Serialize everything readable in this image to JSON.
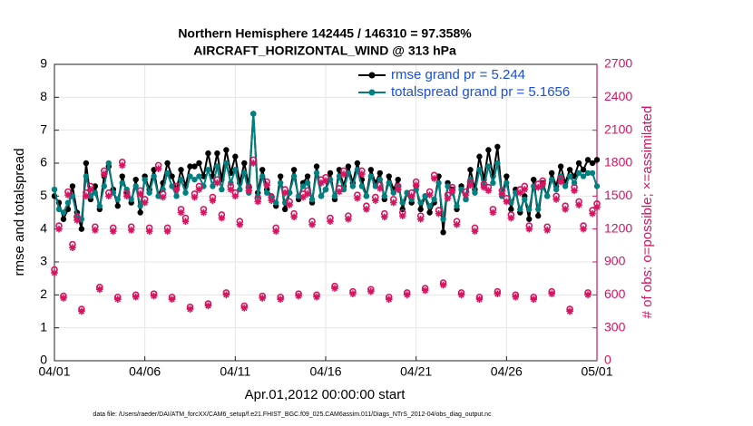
{
  "chart_data": {
    "type": "line",
    "title": "Northern Hemisphere 142445 / 146310 = 97.358%",
    "subtitle": "AIRCRAFT_HORIZONTAL_WIND @ 313 hPa",
    "x_label": "Apr.01,2012 00:00:00 start",
    "y_label": "rmse and totalspread",
    "y2_label": "# of obs: o=possible; ×=assimilated",
    "footnote": "data file: /Users/raeder/DAI/ATM_forcXX/CAM6_setup/f.e21.FHIST_BGC.f09_025.CAM6assim.011/Diags_NTrS_2012-04/obs_diag_output.nc",
    "xlim": [
      0,
      30
    ],
    "xticks": [
      {
        "value": 0,
        "label": "04/01"
      },
      {
        "value": 5,
        "label": "04/06"
      },
      {
        "value": 10,
        "label": "04/11"
      },
      {
        "value": 15,
        "label": "04/16"
      },
      {
        "value": 20,
        "label": "04/21"
      },
      {
        "value": 25,
        "label": "04/26"
      },
      {
        "value": 30,
        "label": "05/01"
      }
    ],
    "ylim": [
      0,
      9
    ],
    "yticks": [
      0,
      1,
      2,
      3,
      4,
      5,
      6,
      7,
      8,
      9
    ],
    "y2lim": [
      0,
      2700
    ],
    "y2ticks": [
      0,
      300,
      600,
      900,
      1200,
      1500,
      1800,
      2100,
      2400,
      2700
    ],
    "grid": true,
    "legend": "upper right",
    "x": [
      0,
      0.25,
      0.5,
      0.75,
      1,
      1.25,
      1.5,
      1.75,
      2,
      2.25,
      2.5,
      2.75,
      3,
      3.25,
      3.5,
      3.75,
      4,
      4.25,
      4.5,
      4.75,
      5,
      5.25,
      5.5,
      5.75,
      6,
      6.25,
      6.5,
      6.75,
      7,
      7.25,
      7.5,
      7.75,
      8,
      8.25,
      8.5,
      8.75,
      9,
      9.25,
      9.5,
      9.75,
      10,
      10.25,
      10.5,
      10.75,
      11,
      11.25,
      11.5,
      11.75,
      12,
      12.25,
      12.5,
      12.75,
      13,
      13.25,
      13.5,
      13.75,
      14,
      14.25,
      14.5,
      14.75,
      15,
      15.25,
      15.5,
      15.75,
      16,
      16.25,
      16.5,
      16.75,
      17,
      17.25,
      17.5,
      17.75,
      18,
      18.25,
      18.5,
      18.75,
      19,
      19.25,
      19.5,
      19.75,
      20,
      20.25,
      20.5,
      20.75,
      21,
      21.25,
      21.5,
      21.75,
      22,
      22.25,
      22.5,
      22.75,
      23,
      23.25,
      23.5,
      23.75,
      24,
      24.25,
      24.5,
      24.75,
      25,
      25.25,
      25.5,
      25.75,
      26,
      26.25,
      26.5,
      26.75,
      27,
      27.25,
      27.5,
      27.75,
      28,
      28.25,
      28.5,
      28.75,
      29,
      29.25,
      29.5,
      29.75,
      30
    ],
    "series": [
      {
        "name": "rmse grand pr = 5.244",
        "color": "#000000",
        "marker": "dot",
        "values": [
          5.0,
          4.8,
          4.3,
          4.6,
          5.3,
          4.5,
          4.0,
          6.0,
          4.9,
          5.3,
          4.6,
          5.6,
          5.9,
          5.2,
          4.7,
          5.6,
          5.1,
          4.8,
          5.5,
          4.5,
          5.6,
          5.2,
          5.8,
          5.0,
          5.4,
          6.0,
          5.6,
          5.2,
          5.8,
          5.3,
          5.9,
          5.9,
          6.0,
          5.6,
          6.3,
          5.6,
          6.3,
          5.5,
          6.4,
          5.7,
          6.2,
          5.4,
          6.0,
          5.3,
          7.5,
          5.1,
          5.8,
          5.2,
          5.0,
          4.7,
          5.6,
          4.6,
          5.1,
          5.8,
          4.9,
          5.4,
          5.6,
          4.8,
          5.9,
          5.0,
          5.2,
          5.7,
          4.9,
          5.8,
          5.3,
          5.9,
          5.4,
          6.0,
          5.5,
          5.0,
          5.8,
          5.4,
          5.7,
          4.9,
          5.6,
          5.2,
          5.5,
          4.6,
          5.1,
          4.8,
          5.3,
          4.6,
          5.0,
          4.5,
          4.8,
          5.6,
          3.9,
          5.4,
          5.2,
          4.6,
          5.3,
          4.9,
          5.8,
          5.2,
          6.2,
          5.5,
          6.4,
          5.6,
          6.5,
          5.0,
          5.6,
          4.6,
          5.2,
          4.5,
          5.0,
          4.3,
          5.5,
          4.4,
          5.4,
          5.0,
          5.7,
          5.3,
          5.9,
          5.4,
          5.8,
          5.6,
          6.0,
          5.8,
          6.1,
          6.0,
          6.1
        ]
      },
      {
        "name": "totalspread grand pr = 5.1656",
        "color": "#008080",
        "marker": "dot",
        "values": [
          5.2,
          4.6,
          4.5,
          4.8,
          5.0,
          4.4,
          4.3,
          5.6,
          5.0,
          5.1,
          4.7,
          5.3,
          6.0,
          5.1,
          4.9,
          5.4,
          5.2,
          4.9,
          5.3,
          4.7,
          5.5,
          5.1,
          5.6,
          5.0,
          5.2,
          5.7,
          5.3,
          5.0,
          5.5,
          5.1,
          5.6,
          5.5,
          5.6,
          5.3,
          5.8,
          5.3,
          5.9,
          5.2,
          6.0,
          5.4,
          5.8,
          5.2,
          5.7,
          5.1,
          7.5,
          5.0,
          5.6,
          5.1,
          5.0,
          4.8,
          5.4,
          4.8,
          5.1,
          5.6,
          5.0,
          5.3,
          5.4,
          4.9,
          5.7,
          5.0,
          5.2,
          5.5,
          5.0,
          5.6,
          5.2,
          5.7,
          5.3,
          5.8,
          5.3,
          5.0,
          5.6,
          5.3,
          5.5,
          5.0,
          5.4,
          5.1,
          5.3,
          4.8,
          5.1,
          4.9,
          5.2,
          4.8,
          5.0,
          4.7,
          4.9,
          5.4,
          4.3,
          5.3,
          5.1,
          4.7,
          5.2,
          4.9,
          5.5,
          5.1,
          5.8,
          5.3,
          5.9,
          5.4,
          6.0,
          5.0,
          5.4,
          4.8,
          5.1,
          4.6,
          4.9,
          4.6,
          5.3,
          4.6,
          5.3,
          5.0,
          5.5,
          5.2,
          5.6,
          5.3,
          5.6,
          5.4,
          5.7,
          5.6,
          5.7,
          5.7,
          5.3
        ]
      },
      {
        "color": "#d6145f",
        "marker": "circle",
        "axis": "y2",
        "values": [
          830,
          1230,
          590,
          1540,
          1060,
          1310,
          470,
          1530,
          1590,
          1220,
          670,
          1730,
          1530,
          1210,
          580,
          1810,
          1530,
          1220,
          600,
          1550,
          1470,
          1210,
          610,
          1780,
          1520,
          1210,
          580,
          1590,
          1380,
          1300,
          490,
          1520,
          1590,
          1380,
          520,
          1490,
          1650,
          1330,
          620,
          1590,
          1530,
          1270,
          500,
          1580,
          1830,
          1480,
          590,
          1630,
          1490,
          1210,
          580,
          1560,
          1450,
          1340,
          610,
          1520,
          1550,
          1270,
          600,
          1650,
          1670,
          1300,
          680,
          1570,
          1730,
          1320,
          630,
          1510,
          1730,
          1410,
          650,
          1490,
          1600,
          1340,
          580,
          1470,
          1590,
          1350,
          620,
          1530,
          1630,
          1320,
          660,
          1540,
          1690,
          1370,
          710,
          1510,
          1580,
          1270,
          620,
          1540,
          1630,
          1210,
          580,
          1610,
          1580,
          1380,
          630,
          1550,
          1480,
          1330,
          600,
          1560,
          1590,
          1230,
          580,
          1610,
          1640,
          1220,
          630,
          1500,
          1660,
          1410,
          470,
          1580,
          1450,
          1230,
          620,
          1370,
          1430
        ]
      },
      {
        "color": "#d6145f",
        "marker": "star",
        "axis": "y2",
        "values": [
          800,
          1200,
          570,
          1510,
          1030,
          1280,
          450,
          1500,
          1560,
          1190,
          650,
          1700,
          1500,
          1180,
          560,
          1780,
          1500,
          1190,
          580,
          1520,
          1440,
          1180,
          590,
          1750,
          1490,
          1180,
          560,
          1560,
          1350,
          1270,
          470,
          1490,
          1560,
          1350,
          500,
          1460,
          1620,
          1300,
          600,
          1560,
          1500,
          1240,
          480,
          1550,
          1800,
          1450,
          570,
          1600,
          1460,
          1180,
          560,
          1530,
          1420,
          1310,
          590,
          1490,
          1520,
          1240,
          580,
          1620,
          1640,
          1270,
          660,
          1540,
          1700,
          1290,
          610,
          1480,
          1700,
          1380,
          630,
          1460,
          1570,
          1310,
          560,
          1440,
          1560,
          1320,
          600,
          1500,
          1600,
          1290,
          640,
          1510,
          1660,
          1340,
          690,
          1480,
          1550,
          1240,
          600,
          1510,
          1600,
          1180,
          560,
          1580,
          1550,
          1350,
          610,
          1520,
          1450,
          1300,
          580,
          1530,
          1560,
          1200,
          560,
          1580,
          1610,
          1190,
          610,
          1470,
          1630,
          1380,
          450,
          1550,
          1420,
          1200,
          600,
          1340,
          1400
        ]
      }
    ]
  }
}
